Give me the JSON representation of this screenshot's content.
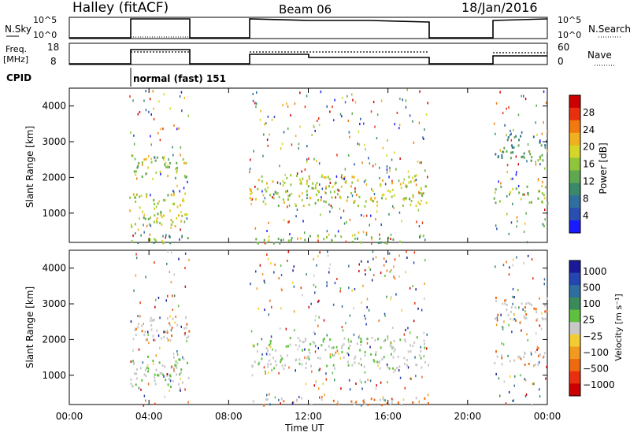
{
  "header": {
    "station": "Halley (fitACF)",
    "beam": "Beam 06",
    "date": "18/Jan/2016"
  },
  "nsky_panel": {
    "left_label": "N.Sky",
    "right_label": "N.Search",
    "tick_top": "10^5",
    "tick_bottom": "10^0"
  },
  "freq_panel": {
    "left_label_1": "Freq.",
    "left_label_2": "[MHz]",
    "left_ticks": [
      "18",
      "8"
    ],
    "right_label": "Nave",
    "right_ticks": [
      "60",
      "0"
    ]
  },
  "cpid_panel": {
    "label": "CPID",
    "program": "normal (fast) 151"
  },
  "colors": {
    "power_scale": [
      "#1a1aff",
      "#2a4fb0",
      "#2f6e9e",
      "#3a8a6a",
      "#5fa84f",
      "#8fc53a",
      "#d6d62a",
      "#f0b020",
      "#f07a10",
      "#e83010",
      "#cc0000"
    ],
    "velocity_scale": [
      "#1a1a99",
      "#2545b0",
      "#2f6e9e",
      "#3a8a5a",
      "#5fc040",
      "#c8c8c8",
      "#f2cc30",
      "#f09a20",
      "#ee6a10",
      "#e83010",
      "#cc0000"
    ]
  },
  "chart_data": [
    {
      "type": "heatmap",
      "name": "power",
      "ylabel": "Slant Range [km]",
      "yticks": [
        "1000",
        "2000",
        "3000",
        "4000"
      ],
      "ylim": [
        180,
        4500
      ],
      "xlim": [
        0,
        24
      ],
      "colorbar_label": "Power [dB]",
      "colorbar_ticks": [
        "4",
        "8",
        "12",
        "16",
        "20",
        "24",
        "28"
      ],
      "colorbar_range": [
        0,
        32
      ],
      "data_intervals_UT": [
        [
          3.0,
          6.0
        ],
        [
          9.0,
          18.0
        ],
        [
          21.3,
          24.0
        ]
      ],
      "scatter_bands": [
        {
          "interval": [
            3.0,
            6.0
          ],
          "range_km": [
            2000,
            2650
          ],
          "power_dB": 16
        },
        {
          "interval": [
            3.0,
            6.0
          ],
          "range_km": [
            600,
            1600
          ],
          "power_dB": 18
        },
        {
          "interval": [
            3.0,
            6.0
          ],
          "range_km": [
            180,
            400
          ],
          "power_dB": 14
        },
        {
          "interval": [
            9.0,
            18.0
          ],
          "range_km": [
            1200,
            2100
          ],
          "power_dB": 18
        },
        {
          "interval": [
            9.0,
            18.0
          ],
          "range_km": [
            180,
            400
          ],
          "power_dB": 14
        },
        {
          "interval": [
            21.3,
            24.0
          ],
          "range_km": [
            1300,
            1800
          ],
          "power_dB": 14
        },
        {
          "interval": [
            21.3,
            24.0
          ],
          "range_km": [
            2500,
            3200
          ],
          "power_dB": 10
        }
      ]
    },
    {
      "type": "heatmap",
      "name": "velocity",
      "ylabel": "Slant Range [km]",
      "xlabel": "Time UT",
      "xticks": [
        "00:00",
        "04:00",
        "08:00",
        "12:00",
        "16:00",
        "20:00",
        "00:00"
      ],
      "yticks": [
        "1000",
        "2000",
        "3000",
        "4000"
      ],
      "ylim": [
        180,
        4500
      ],
      "xlim": [
        0,
        24
      ],
      "colorbar_label": "Velocity [m s⁻¹]",
      "colorbar_ticks": [
        "1000",
        "500",
        "100",
        "25",
        "−25",
        "−100",
        "−500",
        "−1000"
      ],
      "data_intervals_UT": [
        [
          3.0,
          6.0
        ],
        [
          9.0,
          18.0
        ],
        [
          21.3,
          24.0
        ]
      ],
      "scatter_bands": [
        {
          "interval": [
            3.0,
            6.0
          ],
          "range_km": [
            2000,
            2650
          ],
          "velocity": -50
        },
        {
          "interval": [
            3.0,
            6.0
          ],
          "range_km": [
            600,
            1600
          ],
          "velocity": 0
        },
        {
          "interval": [
            9.0,
            18.0
          ],
          "range_km": [
            1200,
            2100
          ],
          "velocity": 0
        },
        {
          "interval": [
            9.0,
            18.0
          ],
          "range_km": [
            180,
            400
          ],
          "velocity": -30
        },
        {
          "interval": [
            21.3,
            24.0
          ],
          "range_km": [
            1300,
            1800
          ],
          "velocity": -40
        },
        {
          "interval": [
            21.3,
            24.0
          ],
          "range_km": [
            2500,
            3200
          ],
          "velocity": -60
        }
      ]
    }
  ]
}
